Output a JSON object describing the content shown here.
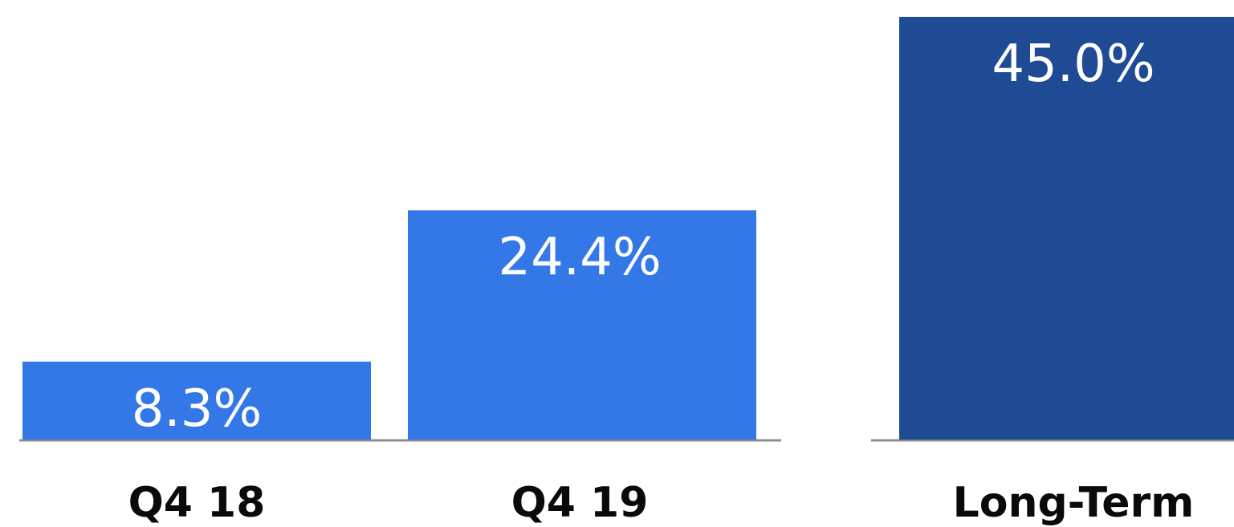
{
  "chart_data": {
    "type": "bar",
    "categories": [
      "Q4 18",
      "Q4 19",
      "Long-Term"
    ],
    "values": [
      8.3,
      24.4,
      45.0
    ],
    "value_labels": [
      "8.3%",
      "24.4%",
      "45.0%"
    ],
    "unit": "%",
    "title": "",
    "xlabel": "",
    "ylabel": "",
    "grid": false,
    "legend": "none",
    "colors": {
      "actual": "#3478E8",
      "target": "#1F4A94",
      "baseline": "#8C8C8C",
      "label_text": "#FFFFFF",
      "category_text": "#0A0A0A"
    },
    "bar_colors": [
      "#3478E8",
      "#3478E8",
      "#1F4A94"
    ]
  }
}
